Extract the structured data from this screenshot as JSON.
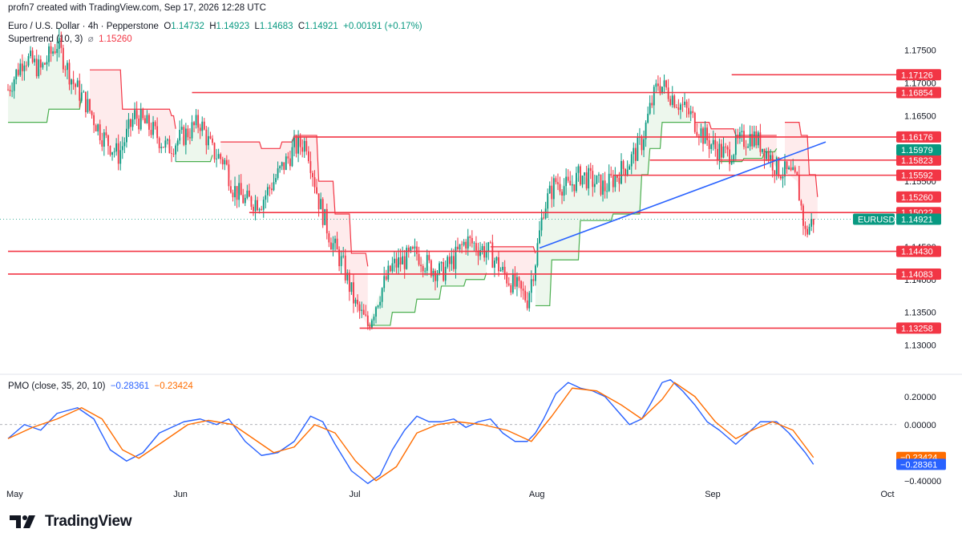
{
  "watermark": "profn7 created with TradingView.com, Sep 17, 2026 12:28 UTC",
  "symbol": {
    "name": "Euro / U.S. Dollar · 4h · Pepperstone",
    "open_label": "O",
    "open": "1.14732",
    "high_label": "H",
    "high": "1.14923",
    "low_label": "L",
    "low": "1.14683",
    "close_label": "C",
    "close": "1.14921",
    "change": "+0.00191 (+0.17%)"
  },
  "supertrend": {
    "label": "Supertrend (10, 3)",
    "symbol": "⌀",
    "value": "1.15260"
  },
  "pmo_legend": {
    "label": "PMO (close, 35, 20, 10)",
    "value_blue": "−0.28361",
    "value_orange": "−0.23424"
  },
  "brand": {
    "name": "TradingView"
  },
  "colors": {
    "up": "#089981",
    "down": "#f23645",
    "level": "#f23645",
    "trendline": "#2962ff",
    "pmo": "#2962ff",
    "signal": "#ff6d00",
    "st_up": "#4caf50",
    "st_down": "#f23645"
  },
  "chart_data": [
    {
      "type": "candlestick",
      "title": "Euro / U.S. Dollar · 4h · Pepperstone",
      "x_ticks": [
        "May",
        "Jun",
        "Jul",
        "Aug",
        "Sep",
        "Oct"
      ],
      "y_ticks": [
        "1.17500",
        "1.17000",
        "1.16500",
        "1.15500",
        "1.14500",
        "1.14000",
        "1.13500",
        "1.13000"
      ],
      "ylim": [
        1.127,
        1.179
      ],
      "grid": false,
      "ohlc_path": [
        [
          0,
          1.169
        ],
        [
          4,
          1.174
        ],
        [
          8,
          1.172
        ],
        [
          12,
          1.176
        ],
        [
          16,
          1.17
        ],
        [
          19,
          1.167
        ],
        [
          23,
          1.162
        ],
        [
          27,
          1.159
        ],
        [
          31,
          1.165
        ],
        [
          35,
          1.163
        ],
        [
          39,
          1.16
        ],
        [
          43,
          1.162
        ],
        [
          47,
          1.164
        ],
        [
          50,
          1.1595
        ],
        [
          53,
          1.158
        ],
        [
          55,
          1.154
        ],
        [
          58,
          1.152
        ],
        [
          62,
          1.152
        ],
        [
          66,
          1.156
        ],
        [
          70,
          1.16
        ],
        [
          73,
          1.161
        ],
        [
          76,
          1.152
        ],
        [
          79,
          1.146
        ],
        [
          82,
          1.142
        ],
        [
          85,
          1.136
        ],
        [
          88,
          1.133
        ],
        [
          91,
          1.138
        ],
        [
          94,
          1.142
        ],
        [
          97,
          1.143
        ],
        [
          100,
          1.144
        ],
        [
          103,
          1.142
        ],
        [
          106,
          1.141
        ],
        [
          109,
          1.143
        ],
        [
          112,
          1.146
        ],
        [
          115,
          1.145
        ],
        [
          118,
          1.144
        ],
        [
          121,
          1.141
        ],
        [
          124,
          1.139
        ],
        [
          127,
          1.137
        ],
        [
          129,
          1.143
        ],
        [
          131,
          1.151
        ],
        [
          134,
          1.155
        ],
        [
          137,
          1.154
        ],
        [
          140,
          1.156
        ],
        [
          143,
          1.155
        ],
        [
          146,
          1.154
        ],
        [
          149,
          1.156
        ],
        [
          152,
          1.158
        ],
        [
          155,
          1.161
        ],
        [
          157,
          1.166
        ],
        [
          159,
          1.17
        ],
        [
          161,
          1.169
        ],
        [
          164,
          1.167
        ],
        [
          167,
          1.165
        ],
        [
          170,
          1.162
        ],
        [
          173,
          1.16
        ],
        [
          176,
          1.159
        ],
        [
          179,
          1.161
        ],
        [
          182,
          1.162
        ],
        [
          185,
          1.16
        ],
        [
          188,
          1.157
        ],
        [
          191,
          1.156
        ],
        [
          193,
          1.155
        ],
        [
          195,
          1.147
        ],
        [
          197,
          1.1492
        ]
      ],
      "supertrend": {
        "value": 1.1526,
        "segments": [
          {
            "dir": "up",
            "points": [
              [
                0,
                1.164
              ],
              [
                10,
                1.166
              ],
              [
                18,
                1.168
              ]
            ]
          },
          {
            "dir": "down",
            "points": [
              [
                20,
                1.172
              ],
              [
                28,
                1.166
              ],
              [
                40,
                1.165
              ],
              [
                41,
                1.163
              ]
            ]
          },
          {
            "dir": "up",
            "points": [
              [
                41,
                1.158
              ],
              [
                50,
                1.159
              ]
            ]
          },
          {
            "dir": "down",
            "points": [
              [
                52,
                1.161
              ],
              [
                56,
                1.161
              ],
              [
                62,
                1.16
              ],
              [
                67,
                1.161
              ],
              [
                70,
                1.162
              ],
              [
                76,
                1.155
              ],
              [
                80,
                1.15
              ],
              [
                84,
                1.144
              ],
              [
                88,
                1.142
              ]
            ]
          },
          {
            "dir": "up",
            "points": [
              [
                88,
                1.133
              ],
              [
                94,
                1.135
              ],
              [
                100,
                1.137
              ],
              [
                106,
                1.139
              ],
              [
                112,
                1.14
              ],
              [
                117,
                1.141
              ]
            ]
          },
          {
            "dir": "down",
            "points": [
              [
                118,
                1.145
              ],
              [
                124,
                1.145
              ],
              [
                129,
                1.144
              ]
            ]
          },
          {
            "dir": "up",
            "points": [
              [
                129,
                1.136
              ],
              [
                133,
                1.143
              ],
              [
                140,
                1.149
              ],
              [
                148,
                1.15
              ],
              [
                155,
                1.156
              ],
              [
                157,
                1.16
              ],
              [
                160,
                1.164
              ],
              [
                167,
                1.164
              ]
            ]
          },
          {
            "dir": "down",
            "points": [
              [
                168,
                1.164
              ],
              [
                172,
                1.163
              ],
              [
                178,
                1.162
              ],
              [
                188,
                1.162
              ]
            ]
          },
          {
            "dir": "up",
            "points": [
              [
                174,
                1.158
              ],
              [
                180,
                1.1585
              ],
              [
                185,
                1.1595
              ],
              [
                188,
                1.16
              ]
            ]
          },
          {
            "dir": "down",
            "points": [
              [
                190,
                1.164
              ],
              [
                194,
                1.162
              ],
              [
                196,
                1.156
              ],
              [
                198,
                1.1526
              ]
            ]
          }
        ]
      },
      "levels": [
        {
          "value": 1.17126,
          "label": "1.17126",
          "x_start": 177
        },
        {
          "value": 1.16854,
          "label": "1.16854",
          "x_start": 45
        },
        {
          "value": 1.16176,
          "label": "1.16176",
          "x_start": 70
        },
        {
          "value": 1.15823,
          "label": "1.15823",
          "x_start": 157
        },
        {
          "value": 1.15592,
          "label": "1.15592",
          "x_start": 148
        },
        {
          "value": 1.15022,
          "label": "1.15022",
          "x_start": 59
        },
        {
          "value": 1.1443,
          "label": "1.14430",
          "x_start": 0
        },
        {
          "value": 1.14083,
          "label": "1.14083",
          "x_start": 0
        },
        {
          "value": 1.13258,
          "label": "1.13258",
          "x_start": 86
        }
      ],
      "price_tags": [
        {
          "value": 1.15979,
          "label": "1.15979",
          "color": "#089981"
        },
        {
          "value": 1.1526,
          "label": "1.15260",
          "color": "#f23645"
        },
        {
          "value": 1.14921,
          "label": "1.14921",
          "color": "#089981",
          "symbol": "EURUSD"
        }
      ],
      "trendline": [
        [
          130,
          1.1448
        ],
        [
          225,
          1.161
        ]
      ]
    },
    {
      "type": "line",
      "title": "PMO (close, 35, 20, 10)",
      "y_ticks": [
        "0.20000",
        "0.00000",
        "−0.40000"
      ],
      "ylim": [
        -0.43,
        0.33
      ],
      "zero_line": 0.0,
      "series": [
        {
          "name": "PMO",
          "color": "#2962ff",
          "values": [
            [
              0,
              -0.1
            ],
            [
              4,
              0.0
            ],
            [
              8,
              -0.04
            ],
            [
              12,
              0.08
            ],
            [
              17,
              0.12
            ],
            [
              21,
              0.04
            ],
            [
              25,
              -0.18
            ],
            [
              29,
              -0.26
            ],
            [
              33,
              -0.2
            ],
            [
              37,
              -0.06
            ],
            [
              43,
              0.02
            ],
            [
              47,
              0.04
            ],
            [
              51,
              0.0
            ],
            [
              54,
              0.04
            ],
            [
              58,
              -0.12
            ],
            [
              62,
              -0.22
            ],
            [
              66,
              -0.2
            ],
            [
              70,
              -0.12
            ],
            [
              74,
              0.06
            ],
            [
              77,
              0.02
            ],
            [
              80,
              -0.14
            ],
            [
              84,
              -0.33
            ],
            [
              88,
              -0.42
            ],
            [
              91,
              -0.36
            ],
            [
              94,
              -0.18
            ],
            [
              97,
              -0.04
            ],
            [
              100,
              0.06
            ],
            [
              103,
              0.02
            ],
            [
              106,
              0.02
            ],
            [
              109,
              0.04
            ],
            [
              112,
              -0.02
            ],
            [
              115,
              0.02
            ],
            [
              118,
              0.04
            ],
            [
              121,
              -0.06
            ],
            [
              124,
              -0.12
            ],
            [
              127,
              -0.12
            ],
            [
              129,
              -0.06
            ],
            [
              131,
              0.04
            ],
            [
              134,
              0.22
            ],
            [
              137,
              0.3
            ],
            [
              140,
              0.26
            ],
            [
              143,
              0.24
            ],
            [
              146,
              0.2
            ],
            [
              149,
              0.1
            ],
            [
              152,
              0.0
            ],
            [
              155,
              0.04
            ],
            [
              157,
              0.14
            ],
            [
              160,
              0.3
            ],
            [
              162,
              0.32
            ],
            [
              165,
              0.24
            ],
            [
              168,
              0.14
            ],
            [
              171,
              0.02
            ],
            [
              174,
              -0.04
            ],
            [
              178,
              -0.14
            ],
            [
              181,
              -0.06
            ],
            [
              184,
              0.02
            ],
            [
              188,
              0.02
            ],
            [
              191,
              -0.06
            ],
            [
              195,
              -0.2
            ],
            [
              197,
              -0.28361
            ]
          ]
        },
        {
          "name": "Signal",
          "color": "#ff6d00",
          "values": [
            [
              0,
              -0.1
            ],
            [
              6,
              -0.02
            ],
            [
              12,
              0.04
            ],
            [
              18,
              0.12
            ],
            [
              23,
              0.04
            ],
            [
              28,
              -0.18
            ],
            [
              32,
              -0.24
            ],
            [
              38,
              -0.12
            ],
            [
              44,
              0.0
            ],
            [
              49,
              0.03
            ],
            [
              55,
              0.0
            ],
            [
              60,
              -0.1
            ],
            [
              65,
              -0.2
            ],
            [
              70,
              -0.16
            ],
            [
              75,
              0.0
            ],
            [
              80,
              -0.06
            ],
            [
              85,
              -0.26
            ],
            [
              90,
              -0.4
            ],
            [
              95,
              -0.3
            ],
            [
              100,
              -0.06
            ],
            [
              105,
              0.0
            ],
            [
              110,
              0.02
            ],
            [
              116,
              0.0
            ],
            [
              122,
              -0.04
            ],
            [
              128,
              -0.12
            ],
            [
              133,
              0.06
            ],
            [
              138,
              0.26
            ],
            [
              144,
              0.24
            ],
            [
              150,
              0.14
            ],
            [
              155,
              0.04
            ],
            [
              160,
              0.18
            ],
            [
              163,
              0.3
            ],
            [
              168,
              0.2
            ],
            [
              173,
              0.02
            ],
            [
              178,
              -0.1
            ],
            [
              182,
              -0.04
            ],
            [
              187,
              0.02
            ],
            [
              192,
              -0.04
            ],
            [
              197,
              -0.23424
            ]
          ]
        }
      ]
    }
  ]
}
